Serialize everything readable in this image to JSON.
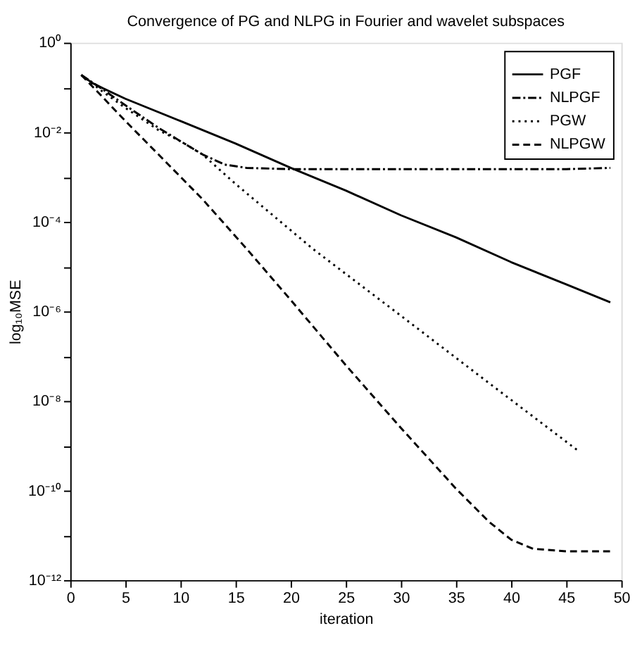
{
  "chart_data": {
    "type": "line",
    "title": "Convergence of PG and NLPG in Fourier and wavelet subspaces",
    "xlabel": "iteration",
    "ylabel": "log₁₀MSE",
    "log": "y",
    "grid": false,
    "legend": "top right",
    "marker": "none",
    "xlim": [
      0,
      50
    ],
    "xticks": [
      0,
      5,
      10,
      15,
      20,
      25,
      30,
      35,
      40,
      45,
      50
    ],
    "ylim": [
      1e-12,
      1
    ],
    "yticks": [
      {
        "value": 1,
        "label": "10⁰"
      },
      {
        "value": 0.1,
        "label": null
      },
      {
        "value": 0.01,
        "label": "10⁻²"
      },
      {
        "value": 0.001,
        "label": null
      },
      {
        "value": 0.0001,
        "label": "10⁻⁴"
      },
      {
        "value": 1e-05,
        "label": null
      },
      {
        "value": 1e-06,
        "label": "10⁻⁶"
      },
      {
        "value": 1e-07,
        "label": null
      },
      {
        "value": 1e-08,
        "label": "10⁻⁸"
      },
      {
        "value": 1e-09,
        "label": null
      },
      {
        "value": 1e-10,
        "label": "10⁻¹⁰"
      },
      {
        "value": 1e-11,
        "label": null
      },
      {
        "value": 1e-12,
        "label": "10⁻¹²"
      }
    ],
    "series": [
      {
        "name": "PGF",
        "color": "#000000",
        "line_style": "solid",
        "x": [
          1,
          2,
          3,
          5,
          10,
          15,
          20,
          25,
          30,
          35,
          40,
          45,
          49
        ],
        "values": [
          0.19,
          0.126,
          0.095,
          0.056,
          0.0178,
          0.0056,
          0.0016,
          0.0005,
          0.00014,
          4.5e-05,
          1.26e-05,
          4e-06,
          1.6e-06
        ]
      },
      {
        "name": "NLPGF",
        "color": "#000000",
        "line_style": "dashdot",
        "x": [
          1,
          3,
          5,
          8,
          10,
          12,
          14,
          16,
          20,
          25,
          30,
          35,
          40,
          45,
          49
        ],
        "values": [
          0.19,
          0.089,
          0.04,
          0.0126,
          0.0063,
          0.0032,
          0.0019,
          0.0016,
          0.0015,
          0.0015,
          0.0015,
          0.0015,
          0.0015,
          0.0015,
          0.0016
        ]
      },
      {
        "name": "PGW",
        "color": "#000000",
        "line_style": "dotted",
        "x": [
          1,
          3,
          5,
          8,
          10,
          12,
          15,
          22,
          30,
          38,
          46
        ],
        "values": [
          0.19,
          0.079,
          0.035,
          0.0112,
          0.0063,
          0.0032,
          0.0007,
          2.5e-05,
          8e-07,
          2.5e-08,
          8e-10
        ]
      },
      {
        "name": "NLPGW",
        "color": "#000000",
        "line_style": "dashed",
        "x": [
          1,
          2.5,
          5,
          8,
          12,
          16,
          20,
          25,
          30,
          35,
          38,
          40,
          42,
          45,
          49
        ],
        "values": [
          0.19,
          0.079,
          0.0178,
          0.0032,
          0.00032,
          2.5e-05,
          1.8e-06,
          6.3e-08,
          2.5e-09,
          1.1e-10,
          2e-11,
          8e-12,
          5e-12,
          4.4e-12,
          4.4e-12
        ]
      }
    ]
  }
}
